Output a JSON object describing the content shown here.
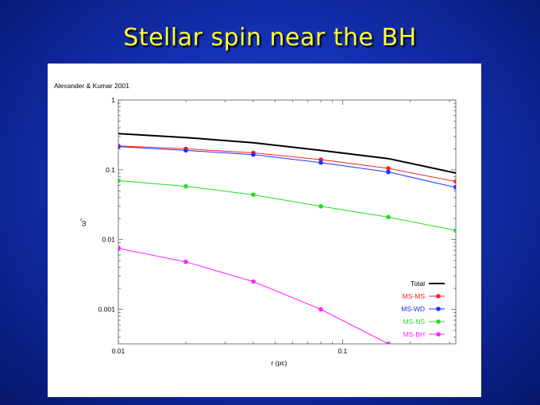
{
  "slide": {
    "title": "Stellar spin near the BH"
  },
  "colors": {
    "background": "#1431b4",
    "title": "#ffff33",
    "panel": "#ffffff"
  },
  "chart_data": {
    "type": "line",
    "title": "",
    "annotation": "Alexander & Kumar 2001",
    "xlabel": "r (pc)",
    "ylabel": "ω̃",
    "xscale": "log",
    "yscale": "log",
    "xlim": [
      0.01,
      0.32
    ],
    "ylim": [
      0.00032,
      1
    ],
    "x_ticks": [
      {
        "value": 0.01,
        "label": "0.01"
      },
      {
        "value": 0.1,
        "label": "0.1"
      }
    ],
    "y_ticks": [
      {
        "value": 1,
        "label": "1"
      },
      {
        "value": 0.1,
        "label": "0.1"
      },
      {
        "value": 0.01,
        "label": "0.01"
      },
      {
        "value": 0.001,
        "label": "0.001"
      }
    ],
    "grid": false,
    "legend": "bottom-right",
    "series": [
      {
        "name": "Total",
        "color": "#000000",
        "markers": false,
        "x": [
          0.01,
          0.02,
          0.04,
          0.08,
          0.16,
          0.32
        ],
        "y": [
          0.33,
          0.29,
          0.245,
          0.19,
          0.145,
          0.09
        ]
      },
      {
        "name": "MS-MS",
        "color": "#ff2020",
        "markers": true,
        "x": [
          0.01,
          0.02,
          0.04,
          0.08,
          0.16,
          0.32
        ],
        "y": [
          0.22,
          0.2,
          0.175,
          0.14,
          0.105,
          0.068
        ]
      },
      {
        "name": "MS-WD",
        "color": "#2030ff",
        "markers": true,
        "x": [
          0.01,
          0.02,
          0.04,
          0.08,
          0.16,
          0.32
        ],
        "y": [
          0.215,
          0.19,
          0.165,
          0.127,
          0.093,
          0.056
        ]
      },
      {
        "name": "MS-NS",
        "color": "#22dd22",
        "markers": true,
        "x": [
          0.01,
          0.02,
          0.04,
          0.08,
          0.16,
          0.32
        ],
        "y": [
          0.07,
          0.058,
          0.044,
          0.03,
          0.021,
          0.0135
        ]
      },
      {
        "name": "MS-BH",
        "color": "#ff22ff",
        "markers": true,
        "x": [
          0.01,
          0.02,
          0.04,
          0.08,
          0.16
        ],
        "y": [
          0.0075,
          0.0048,
          0.0025,
          0.001,
          0.00032
        ]
      }
    ]
  }
}
